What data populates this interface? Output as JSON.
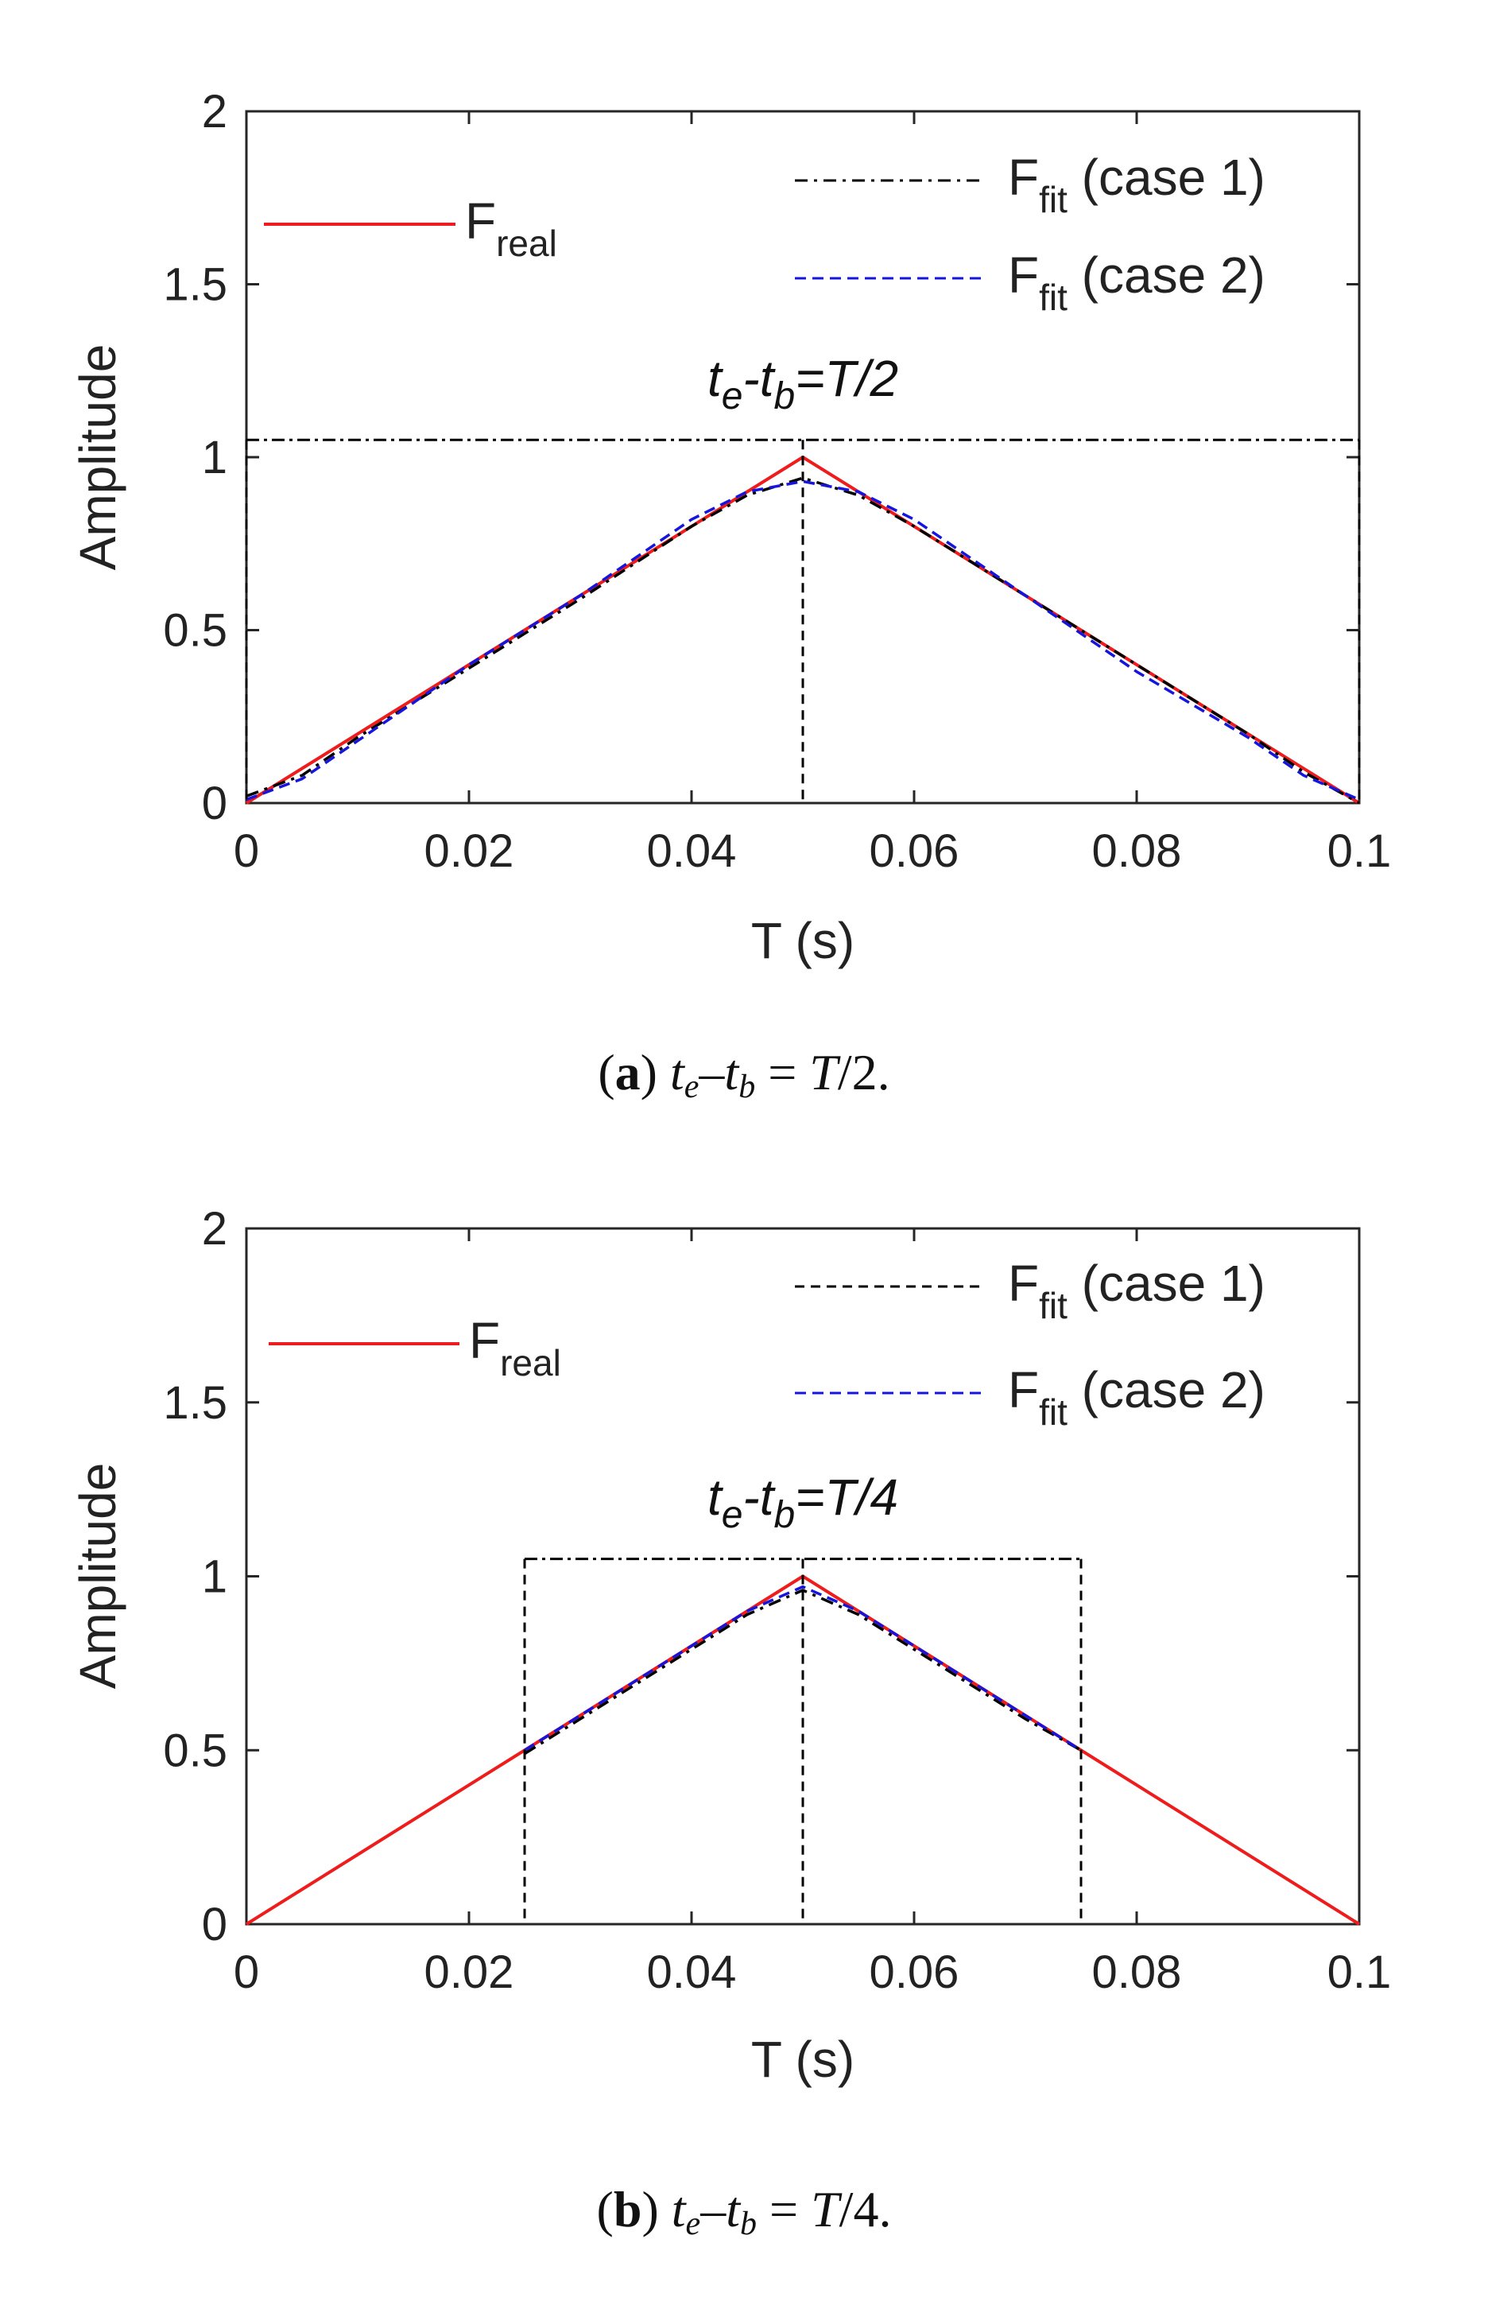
{
  "figure_captions": [
    {
      "letter": "a",
      "text_main": "t",
      "sub1": "e",
      "dash": "–",
      "t2": "t",
      "sub2": "b",
      "eq": " = ",
      "tval": "T",
      "rest": "/2."
    },
    {
      "letter": "b",
      "text_main": "t",
      "sub1": "e",
      "dash": "–",
      "t2": "t",
      "sub2": "b",
      "eq": " = ",
      "tval": "T",
      "rest": "/4."
    }
  ],
  "colors": {
    "real": "#ee1c1c",
    "case1": "#000000",
    "case2": "#1515dd",
    "axis": "#262626"
  },
  "chart_data": [
    {
      "type": "line",
      "title": "",
      "xlabel": "T (s)",
      "ylabel": "Amplitude",
      "xlim": [
        0,
        0.1
      ],
      "ylim": [
        0,
        2
      ],
      "xticks": [
        "0",
        "0.02",
        "0.04",
        "0.06",
        "0.08",
        "0.1"
      ],
      "xtick_values": [
        0,
        0.02,
        0.04,
        0.06,
        0.08,
        0.1
      ],
      "yticks": [
        "0",
        "0.5",
        "1",
        "1.5",
        "2"
      ],
      "ytick_values": [
        0,
        0.5,
        1,
        1.5,
        2
      ],
      "annotation": {
        "t1": "t",
        "s1": "e",
        "mid": "-t",
        "s2": "b",
        "rest": "=T/2"
      },
      "window_bracket": {
        "x_start": 0,
        "x_end": 0.1,
        "y": 1.05,
        "markers": [
          0,
          0.05,
          0.1
        ]
      },
      "legend_real": {
        "base": "F",
        "sub": "real"
      },
      "legend_fit": [
        {
          "base": "F",
          "sub": "fit",
          "rest": " (case 1)"
        },
        {
          "base": "F",
          "sub": "fit",
          "rest": " (case 2)"
        }
      ],
      "series": [
        {
          "name": "F_real",
          "style": "solid",
          "x": [
            0,
            0.05,
            0.1
          ],
          "y": [
            0,
            1,
            0
          ]
        },
        {
          "name": "F_fit (case 1)",
          "style": "dashdot",
          "x": [
            0,
            0.005,
            0.01,
            0.02,
            0.03,
            0.04,
            0.045,
            0.05,
            0.055,
            0.06,
            0.07,
            0.08,
            0.09,
            0.095,
            0.1
          ],
          "y": [
            0.02,
            0.08,
            0.19,
            0.39,
            0.59,
            0.8,
            0.89,
            0.94,
            0.89,
            0.8,
            0.6,
            0.4,
            0.2,
            0.09,
            0.0
          ]
        },
        {
          "name": "F_fit (case 2)",
          "style": "dashed",
          "x": [
            0,
            0.005,
            0.01,
            0.02,
            0.03,
            0.04,
            0.045,
            0.05,
            0.055,
            0.06,
            0.07,
            0.08,
            0.09,
            0.095,
            0.1
          ],
          "y": [
            0.01,
            0.07,
            0.18,
            0.4,
            0.6,
            0.82,
            0.9,
            0.93,
            0.9,
            0.82,
            0.6,
            0.38,
            0.19,
            0.08,
            0.01
          ]
        }
      ]
    },
    {
      "type": "line",
      "title": "",
      "xlabel": "T (s)",
      "ylabel": "Amplitude",
      "xlim": [
        0,
        0.1
      ],
      "ylim": [
        0,
        2
      ],
      "xticks": [
        "0",
        "0.02",
        "0.04",
        "0.06",
        "0.08",
        "0.1"
      ],
      "xtick_values": [
        0,
        0.02,
        0.04,
        0.06,
        0.08,
        0.1
      ],
      "yticks": [
        "0",
        "0.5",
        "1",
        "1.5",
        "2"
      ],
      "ytick_values": [
        0,
        0.5,
        1,
        1.5,
        2
      ],
      "annotation": {
        "t1": "t",
        "s1": "e",
        "mid": "-t",
        "s2": "b",
        "rest": "=T/4"
      },
      "window_bracket": {
        "x_start": 0.025,
        "x_end": 0.075,
        "y": 1.05,
        "markers": [
          0.025,
          0.05,
          0.075
        ]
      },
      "legend_real": {
        "base": "F",
        "sub": "real"
      },
      "legend_fit": [
        {
          "base": "F",
          "sub": "fit",
          "rest": " (case 1)"
        },
        {
          "base": "F",
          "sub": "fit",
          "rest": " (case 2)"
        }
      ],
      "series": [
        {
          "name": "F_real",
          "style": "solid",
          "x": [
            0,
            0.05,
            0.1
          ],
          "y": [
            0,
            1,
            0
          ]
        },
        {
          "name": "F_fit (case 1)",
          "style": "dashdot",
          "x": [
            0.025,
            0.03,
            0.035,
            0.04,
            0.045,
            0.05,
            0.055,
            0.06,
            0.065,
            0.07,
            0.075
          ],
          "y": [
            0.49,
            0.59,
            0.69,
            0.79,
            0.89,
            0.96,
            0.89,
            0.79,
            0.69,
            0.59,
            0.5
          ]
        },
        {
          "name": "F_fit (case 2)",
          "style": "dashed",
          "x": [
            0.025,
            0.03,
            0.035,
            0.04,
            0.045,
            0.05,
            0.055,
            0.06,
            0.065,
            0.07,
            0.075
          ],
          "y": [
            0.5,
            0.6,
            0.7,
            0.8,
            0.9,
            0.97,
            0.9,
            0.8,
            0.7,
            0.6,
            0.5
          ]
        }
      ]
    }
  ]
}
